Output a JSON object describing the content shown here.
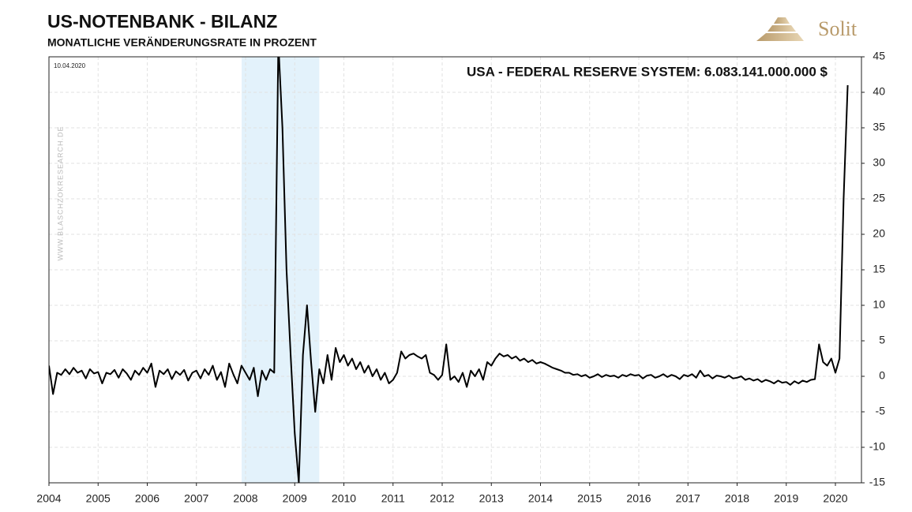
{
  "chart_data": {
    "type": "line",
    "title": "US-NOTENBANK - BILANZ",
    "subtitle": "MONATLICHE VERÄNDERUNGSRATE IN PROZENT",
    "date_label": "10.04.2020",
    "annotation": "USA - FEDERAL RESERVE SYSTEM: 6.083.141.000.000 $",
    "watermark": "WWW.BLASCHZOKRESEARCH.DE",
    "logo": "Solit",
    "xlim": [
      2004,
      2020.53
    ],
    "xticks": [
      2004,
      2005,
      2006,
      2007,
      2008,
      2009,
      2010,
      2011,
      2012,
      2013,
      2014,
      2015,
      2016,
      2017,
      2018,
      2019,
      2020
    ],
    "ylim": [
      -15,
      45
    ],
    "yticks": [
      -15,
      -10,
      -5,
      0,
      5,
      10,
      15,
      20,
      25,
      30,
      35,
      40,
      45
    ],
    "grid": true,
    "shaded_regions": [
      [
        2007.92,
        2009.5
      ]
    ],
    "shade_color": "#e3f2fb",
    "series": [
      {
        "name": "Veränderungsrate",
        "color": "#000000",
        "x": [
          2004,
          2004.083,
          2004.167,
          2004.25,
          2004.333,
          2004.417,
          2004.5,
          2004.583,
          2004.667,
          2004.75,
          2004.833,
          2004.917,
          2005,
          2005.083,
          2005.167,
          2005.25,
          2005.333,
          2005.417,
          2005.5,
          2005.583,
          2005.667,
          2005.75,
          2005.833,
          2005.917,
          2006,
          2006.083,
          2006.167,
          2006.25,
          2006.333,
          2006.417,
          2006.5,
          2006.583,
          2006.667,
          2006.75,
          2006.833,
          2006.917,
          2007,
          2007.083,
          2007.167,
          2007.25,
          2007.333,
          2007.417,
          2007.5,
          2007.583,
          2007.667,
          2007.75,
          2007.833,
          2007.917,
          2008,
          2008.083,
          2008.167,
          2008.25,
          2008.333,
          2008.417,
          2008.5,
          2008.583,
          2008.667,
          2008.75,
          2008.833,
          2008.917,
          2009,
          2009.083,
          2009.167,
          2009.25,
          2009.333,
          2009.417,
          2009.5,
          2009.583,
          2009.667,
          2009.75,
          2009.833,
          2009.917,
          2010,
          2010.083,
          2010.167,
          2010.25,
          2010.333,
          2010.417,
          2010.5,
          2010.583,
          2010.667,
          2010.75,
          2010.833,
          2010.917,
          2011,
          2011.083,
          2011.167,
          2011.25,
          2011.333,
          2011.417,
          2011.5,
          2011.583,
          2011.667,
          2011.75,
          2011.833,
          2011.917,
          2012,
          2012.083,
          2012.167,
          2012.25,
          2012.333,
          2012.417,
          2012.5,
          2012.583,
          2012.667,
          2012.75,
          2012.833,
          2012.917,
          2013,
          2013.083,
          2013.167,
          2013.25,
          2013.333,
          2013.417,
          2013.5,
          2013.583,
          2013.667,
          2013.75,
          2013.833,
          2013.917,
          2014,
          2014.083,
          2014.167,
          2014.25,
          2014.333,
          2014.417,
          2014.5,
          2014.583,
          2014.667,
          2014.75,
          2014.833,
          2014.917,
          2015,
          2015.083,
          2015.167,
          2015.25,
          2015.333,
          2015.417,
          2015.5,
          2015.583,
          2015.667,
          2015.75,
          2015.833,
          2015.917,
          2016,
          2016.083,
          2016.167,
          2016.25,
          2016.333,
          2016.417,
          2016.5,
          2016.583,
          2016.667,
          2016.75,
          2016.833,
          2016.917,
          2017,
          2017.083,
          2017.167,
          2017.25,
          2017.333,
          2017.417,
          2017.5,
          2017.583,
          2017.667,
          2017.75,
          2017.833,
          2017.917,
          2018,
          2018.083,
          2018.167,
          2018.25,
          2018.333,
          2018.417,
          2018.5,
          2018.583,
          2018.667,
          2018.75,
          2018.833,
          2018.917,
          2019,
          2019.083,
          2019.167,
          2019.25,
          2019.333,
          2019.417,
          2019.5,
          2019.583,
          2019.667,
          2019.75,
          2019.833,
          2019.917,
          2020,
          2020.083,
          2020.167,
          2020.25
        ],
        "values": [
          1.5,
          -2.5,
          0.5,
          0.2,
          1.0,
          0.3,
          1.2,
          0.5,
          0.8,
          -0.3,
          1.0,
          0.4,
          0.6,
          -1.0,
          0.5,
          0.3,
          0.9,
          -0.2,
          1.0,
          0.4,
          -0.5,
          0.8,
          0.2,
          1.2,
          0.5,
          1.8,
          -1.5,
          0.8,
          0.3,
          1.0,
          -0.4,
          0.7,
          0.2,
          0.9,
          -0.6,
          0.5,
          0.8,
          -0.3,
          1.0,
          0.2,
          1.5,
          -0.5,
          0.6,
          -1.5,
          1.8,
          0.3,
          -1.0,
          1.5,
          0.5,
          -0.5,
          1.2,
          -2.8,
          0.8,
          -0.5,
          1.0,
          0.5,
          47,
          35,
          15,
          3,
          -8,
          -15,
          3,
          10,
          2,
          -5,
          1,
          -1,
          3,
          -0.5,
          4,
          2,
          3,
          1.5,
          2.5,
          1,
          2,
          0.5,
          1.5,
          0,
          1,
          -0.5,
          0.5,
          -1,
          -0.5,
          0.5,
          3.5,
          2.5,
          3.0,
          3.2,
          2.8,
          2.5,
          3.0,
          0.5,
          0.2,
          -0.5,
          0.2,
          4.5,
          -0.5,
          0,
          -0.8,
          0.5,
          -1.5,
          0.8,
          0,
          1,
          -0.5,
          2,
          1.5,
          2.5,
          3.2,
          2.8,
          3.0,
          2.5,
          2.8,
          2.2,
          2.5,
          2.0,
          2.3,
          1.8,
          2,
          1.8,
          1.5,
          1.2,
          1.0,
          0.8,
          0.5,
          0.5,
          0.2,
          0.3,
          0,
          0.2,
          -0.2,
          0,
          0.3,
          -0.1,
          0.2,
          0,
          0.1,
          -0.2,
          0.2,
          0,
          0.3,
          0.1,
          0.2,
          -0.3,
          0.1,
          0.2,
          -0.2,
          0,
          0.3,
          -0.1,
          0.2,
          0,
          -0.4,
          0.2,
          0,
          0.3,
          -0.2,
          0.8,
          0,
          0.2,
          -0.3,
          0.1,
          0,
          -0.2,
          0.1,
          -0.3,
          -0.2,
          0,
          -0.5,
          -0.3,
          -0.6,
          -0.4,
          -0.8,
          -0.5,
          -0.7,
          -1.0,
          -0.6,
          -0.9,
          -0.8,
          -1.2,
          -0.7,
          -1.0,
          -0.6,
          -0.8,
          -0.5,
          -0.4,
          4.5,
          2.0,
          1.5,
          2.5,
          0.5,
          2.5,
          25,
          41
        ]
      }
    ]
  }
}
